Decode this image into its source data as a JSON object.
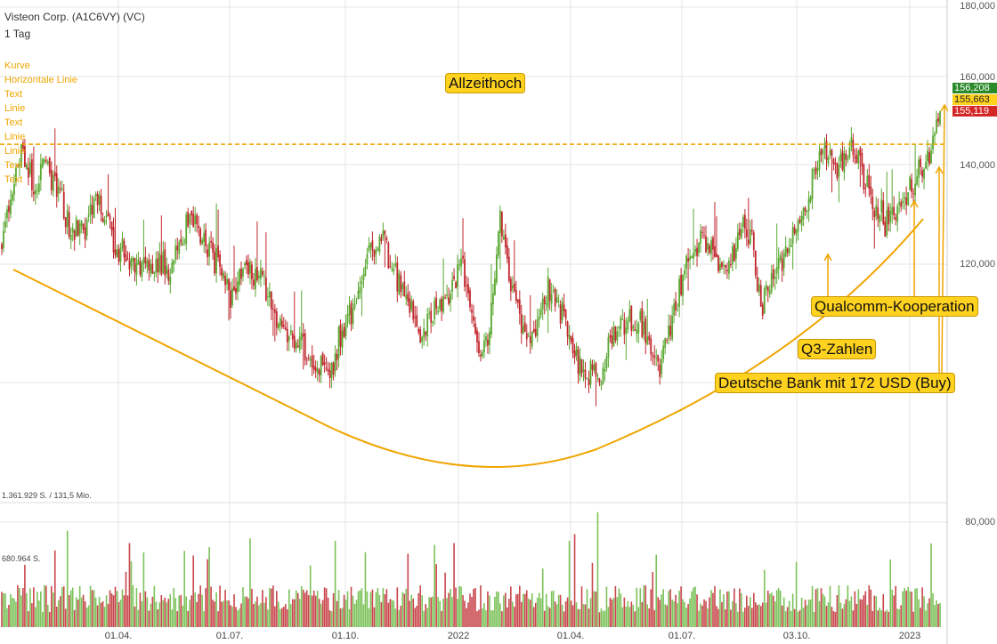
{
  "header": {
    "title": "Visteon Corp. (A1C6VY) (VC)",
    "interval": "1 Tag"
  },
  "drawing_tools": [
    "Kurve",
    "Horizontale Linie",
    "Text",
    "Linie",
    "Text",
    "Linie",
    "Linie",
    "Text",
    "Text"
  ],
  "colors": {
    "up": "#5aa832",
    "down": "#c0262c",
    "accent": "#f0a500",
    "grid": "#e6e6e6",
    "callout_bg": "#ffd21f",
    "tag_high": "#2a8a2a",
    "tag_close": "#ffd21f",
    "tag_low": "#d42828"
  },
  "volume_labels": {
    "top": "1.361.929 S. / 131,5 Mio.",
    "mid": "680.964 S."
  },
  "annotations": {
    "allzeithoch": "Allzeithoch",
    "qualcomm": "Qualcomm-Kooperation",
    "q3": "Q3-Zahlen",
    "deutsche_bank": "Deutsche Bank mit 172 USD (Buy)"
  },
  "price_tags": {
    "high": "156,208",
    "close": "155,663",
    "low": "155,119"
  },
  "chart_data": {
    "type": "candlestick",
    "title": "Visteon Corp. (A1C6VY) (VC)",
    "y_ticks": [
      "180,000",
      "160,000",
      "140,000",
      "120,000",
      "80,000"
    ],
    "x_ticks": [
      "01.04.",
      "01.07.",
      "01.10.",
      "2022",
      "01.04.",
      "01.07.",
      "03.10.",
      "2023"
    ],
    "ylim": [
      88,
      180
    ],
    "all_time_high_level": 148,
    "price_path": [
      [
        0,
        125
      ],
      [
        0.012,
        138
      ],
      [
        0.022,
        146
      ],
      [
        0.035,
        137
      ],
      [
        0.045,
        143
      ],
      [
        0.06,
        138
      ],
      [
        0.075,
        126
      ],
      [
        0.09,
        130
      ],
      [
        0.105,
        135
      ],
      [
        0.12,
        124
      ],
      [
        0.135,
        122
      ],
      [
        0.15,
        118
      ],
      [
        0.165,
        122
      ],
      [
        0.18,
        118
      ],
      [
        0.2,
        130
      ],
      [
        0.215,
        126
      ],
      [
        0.23,
        120
      ],
      [
        0.245,
        112
      ],
      [
        0.26,
        120
      ],
      [
        0.275,
        118
      ],
      [
        0.3,
        104
      ],
      [
        0.32,
        102
      ],
      [
        0.335,
        96
      ],
      [
        0.35,
        94
      ],
      [
        0.36,
        102
      ],
      [
        0.375,
        110
      ],
      [
        0.39,
        122
      ],
      [
        0.405,
        126
      ],
      [
        0.42,
        118
      ],
      [
        0.435,
        110
      ],
      [
        0.445,
        102
      ],
      [
        0.46,
        110
      ],
      [
        0.475,
        112
      ],
      [
        0.49,
        120
      ],
      [
        0.5,
        108
      ],
      [
        0.51,
        99
      ],
      [
        0.52,
        104
      ],
      [
        0.53,
        132
      ],
      [
        0.54,
        118
      ],
      [
        0.55,
        110
      ],
      [
        0.565,
        102
      ],
      [
        0.58,
        114
      ],
      [
        0.595,
        110
      ],
      [
        0.61,
        100
      ],
      [
        0.625,
        94
      ],
      [
        0.64,
        96
      ],
      [
        0.655,
        105
      ],
      [
        0.67,
        108
      ],
      [
        0.685,
        104
      ],
      [
        0.7,
        96
      ],
      [
        0.715,
        106
      ],
      [
        0.73,
        120
      ],
      [
        0.745,
        127
      ],
      [
        0.76,
        122
      ],
      [
        0.775,
        118
      ],
      [
        0.79,
        130
      ],
      [
        0.8,
        124
      ],
      [
        0.81,
        110
      ],
      [
        0.82,
        115
      ],
      [
        0.83,
        121
      ],
      [
        0.845,
        128
      ],
      [
        0.86,
        136
      ],
      [
        0.875,
        148
      ],
      [
        0.89,
        142
      ],
      [
        0.905,
        148
      ],
      [
        0.92,
        140
      ],
      [
        0.93,
        132
      ],
      [
        0.945,
        130
      ],
      [
        0.96,
        136
      ],
      [
        0.975,
        142
      ],
      [
        0.99,
        146
      ],
      [
        1.0,
        155.7
      ]
    ],
    "close": 155.663,
    "last_high": 156.208,
    "last_low": 155.119
  }
}
